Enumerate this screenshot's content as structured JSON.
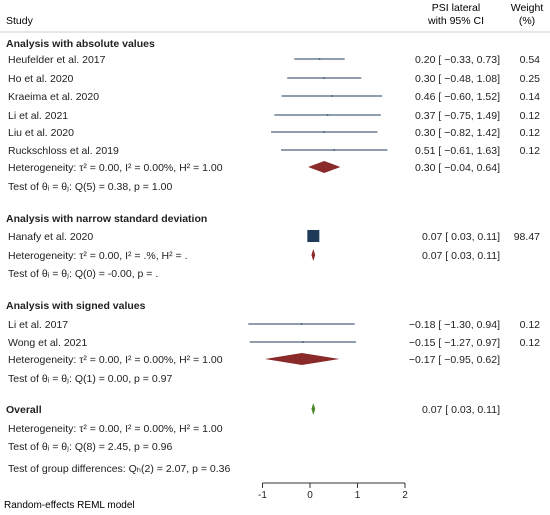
{
  "colors": {
    "text": "#222222",
    "ci_line": "#1f3b5a",
    "square": "#1f3b5a",
    "diamond_group": "#8b2a2a",
    "diamond_overall": "#4a8a2a",
    "rule": "#cfcfcf"
  },
  "headers": {
    "study": "Study",
    "effect_l1": "PSI lateral",
    "effect_l2": "with 95% CI",
    "weight_l1": "Weight",
    "weight_l2": "(%)"
  },
  "footer": {
    "model": "Random-effects REML model"
  },
  "chart_data": {
    "type": "forest",
    "xlim": [
      -1,
      2
    ],
    "ticks": [
      -1,
      0,
      1,
      2
    ],
    "tick_labels": [
      "-1",
      "0",
      "1",
      "2"
    ],
    "null_line": 0,
    "groups": [
      {
        "name": "Analysis with absolute values",
        "studies": [
          {
            "label": "Heufelder et al. 2017",
            "est": 0.2,
            "lo": -0.33,
            "hi": 0.73,
            "ci_text": "0.20 [ −0.33, 0.73]",
            "weight": "0.54"
          },
          {
            "label": "Ho et al. 2020",
            "est": 0.3,
            "lo": -0.48,
            "hi": 1.08,
            "ci_text": "0.30 [ −0.48, 1.08]",
            "weight": "0.25"
          },
          {
            "label": "Kraeima et al. 2020",
            "est": 0.46,
            "lo": -0.6,
            "hi": 1.52,
            "ci_text": "0.46 [ −0.60, 1.52]",
            "weight": "0.14"
          },
          {
            "label": "Li et al. 2021",
            "est": 0.37,
            "lo": -0.75,
            "hi": 1.49,
            "ci_text": "0.37 [ −0.75, 1.49]",
            "weight": "0.12"
          },
          {
            "label": "Liu et al. 2020",
            "est": 0.3,
            "lo": -0.82,
            "hi": 1.42,
            "ci_text": "0.30 [ −0.82, 1.42]",
            "weight": "0.12"
          },
          {
            "label": "Ruckschloss et al. 2019",
            "est": 0.51,
            "lo": -0.61,
            "hi": 1.63,
            "ci_text": "0.51 [ −0.61, 1.63]",
            "weight": "0.12"
          }
        ],
        "heterogeneity": "Heterogeneity: τ² = 0.00, I² = 0.00%, H² = 1.00",
        "pooled": {
          "est": 0.3,
          "lo": -0.04,
          "hi": 0.64,
          "ci_text": "0.30 [ −0.04, 0.64]"
        },
        "test": "Test of θᵢ = θⱼ: Q(5) = 0.38, p = 1.00"
      },
      {
        "name": "Analysis with narrow standard deviation",
        "studies": [
          {
            "label": "Hanafy et al. 2020",
            "est": 0.07,
            "lo": 0.03,
            "hi": 0.11,
            "ci_text": "0.07 [  0.03, 0.11]",
            "weight": "98.47"
          }
        ],
        "heterogeneity": "Heterogeneity: τ² = 0.00, I² = .%, H² = .",
        "pooled": {
          "est": 0.07,
          "lo": 0.03,
          "hi": 0.11,
          "ci_text": "0.07 [  0.03, 0.11]"
        },
        "test": "Test of θᵢ = θⱼ: Q(0) = -0.00, p = ."
      },
      {
        "name": "Analysis with signed values",
        "studies": [
          {
            "label": "Li et al. 2017",
            "est": -0.18,
            "lo": -1.3,
            "hi": 0.94,
            "ci_text": "−0.18 [ −1.30, 0.94]",
            "weight": "0.12"
          },
          {
            "label": "Wong et al. 2021",
            "est": -0.15,
            "lo": -1.27,
            "hi": 0.97,
            "ci_text": "−0.15 [ −1.27, 0.97]",
            "weight": "0.12"
          }
        ],
        "heterogeneity": "Heterogeneity: τ² = 0.00, I² = 0.00%, H² = 1.00",
        "pooled": {
          "est": -0.17,
          "lo": -0.95,
          "hi": 0.62,
          "ci_text": "−0.17 [ −0.95, 0.62]"
        },
        "test": "Test of θᵢ = θⱼ: Q(1) = 0.00, p = 0.97"
      }
    ],
    "overall": {
      "name": "Overall",
      "est": 0.07,
      "lo": 0.03,
      "hi": 0.11,
      "ci_text": "0.07 [  0.03, 0.11]",
      "heterogeneity": "Heterogeneity: τ² = 0.00, I² = 0.00%, H² = 1.00",
      "test": "Test of θᵢ = θⱼ: Q(8) = 2.45, p = 0.96",
      "group_test": "Test of group differences: Qₕ(2) = 2.07, p = 0.36"
    }
  }
}
